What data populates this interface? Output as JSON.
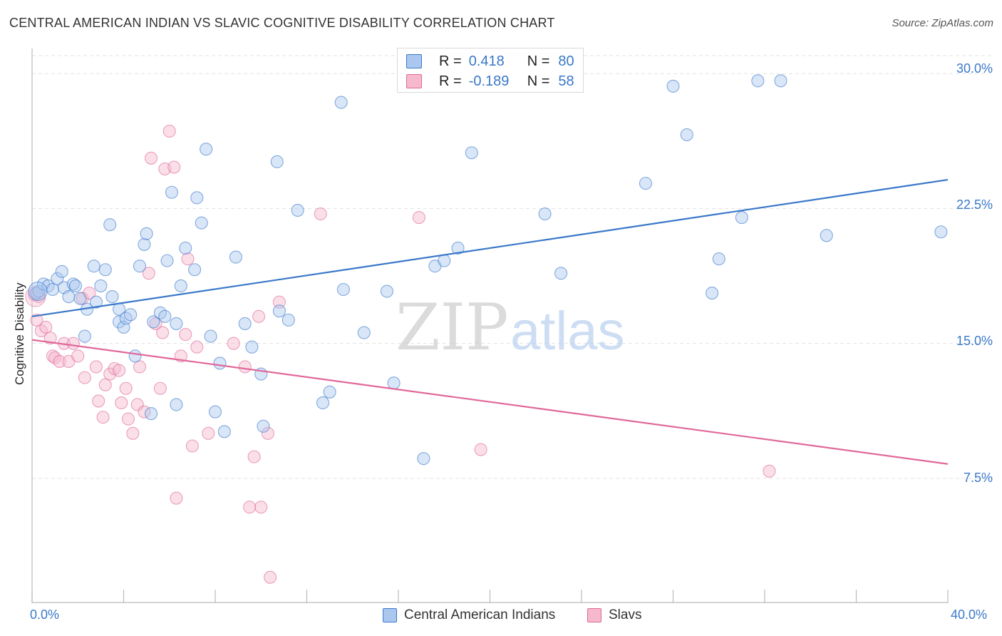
{
  "title": "CENTRAL AMERICAN INDIAN VS SLAVIC COGNITIVE DISABILITY CORRELATION CHART",
  "source": "Source: ZipAtlas.com",
  "watermark": "ZIPatlas",
  "legend": {
    "r_label": "R =",
    "n_label": "N =",
    "series1": {
      "r": "0.418",
      "n": "80"
    },
    "series2": {
      "r": "-0.189",
      "n": "58"
    }
  },
  "colors": {
    "blue": "#3a78c9",
    "blue_fill": "#aac8ef",
    "pink": "#e0689a",
    "pink_fill": "#f5b8cc",
    "grid": "#e3e3e3"
  },
  "chart_data": {
    "type": "scatter",
    "title": "CENTRAL AMERICAN INDIAN VS SLAVIC COGNITIVE DISABILITY CORRELATION CHART",
    "xlabel": "",
    "ylabel": "Cognitive Disability",
    "xlim": [
      0,
      40
    ],
    "ylim": [
      0.6,
      31.0
    ],
    "x_tick_labels": [
      "0.0%",
      "40.0%"
    ],
    "y_ticks": [
      7.5,
      15.0,
      22.5,
      30.0
    ],
    "y_tick_labels": [
      "7.5%",
      "15.0%",
      "22.5%",
      "30.0%"
    ],
    "grid": true,
    "legend_position": "top-center",
    "series": [
      {
        "name": "Central American Indians",
        "r": 0.418,
        "n": 80,
        "trend": [
          [
            0,
            16.5
          ],
          [
            40,
            24.1
          ]
        ],
        "points": [
          [
            0.2,
            17.8
          ],
          [
            0.3,
            17.9
          ],
          [
            0.5,
            18.3
          ],
          [
            0.7,
            18.2
          ],
          [
            0.9,
            18.0
          ],
          [
            1.1,
            18.6
          ],
          [
            1.3,
            19.0
          ],
          [
            1.4,
            18.1
          ],
          [
            1.6,
            17.6
          ],
          [
            1.8,
            18.3
          ],
          [
            1.9,
            18.2
          ],
          [
            2.1,
            17.5
          ],
          [
            2.3,
            15.4
          ],
          [
            2.4,
            16.9
          ],
          [
            2.7,
            19.3
          ],
          [
            2.8,
            17.3
          ],
          [
            3.0,
            18.2
          ],
          [
            3.2,
            19.1
          ],
          [
            3.4,
            21.6
          ],
          [
            3.5,
            17.6
          ],
          [
            3.8,
            16.9
          ],
          [
            3.8,
            16.2
          ],
          [
            4.0,
            15.9
          ],
          [
            4.1,
            16.4
          ],
          [
            4.3,
            16.6
          ],
          [
            4.5,
            14.3
          ],
          [
            4.7,
            19.3
          ],
          [
            4.9,
            20.5
          ],
          [
            5.0,
            21.1
          ],
          [
            5.2,
            11.1
          ],
          [
            5.3,
            16.2
          ],
          [
            5.6,
            16.7
          ],
          [
            5.8,
            16.5
          ],
          [
            5.9,
            19.6
          ],
          [
            6.1,
            23.4
          ],
          [
            6.3,
            11.6
          ],
          [
            6.3,
            16.1
          ],
          [
            6.5,
            18.2
          ],
          [
            6.7,
            20.3
          ],
          [
            7.1,
            19.1
          ],
          [
            7.2,
            23.1
          ],
          [
            7.4,
            21.7
          ],
          [
            7.6,
            25.8
          ],
          [
            7.8,
            15.4
          ],
          [
            8.0,
            11.2
          ],
          [
            8.2,
            13.9
          ],
          [
            8.4,
            10.1
          ],
          [
            8.9,
            19.8
          ],
          [
            9.3,
            16.1
          ],
          [
            9.6,
            14.8
          ],
          [
            10.0,
            13.3
          ],
          [
            10.1,
            10.4
          ],
          [
            10.7,
            25.1
          ],
          [
            10.8,
            16.8
          ],
          [
            11.2,
            16.3
          ],
          [
            11.6,
            22.4
          ],
          [
            12.7,
            11.7
          ],
          [
            13.0,
            12.3
          ],
          [
            13.5,
            28.4
          ],
          [
            13.6,
            18.0
          ],
          [
            14.5,
            15.6
          ],
          [
            15.5,
            17.9
          ],
          [
            15.8,
            12.8
          ],
          [
            17.1,
            8.6
          ],
          [
            17.6,
            19.3
          ],
          [
            18.0,
            19.6
          ],
          [
            18.6,
            20.3
          ],
          [
            19.2,
            25.6
          ],
          [
            22.4,
            22.2
          ],
          [
            23.1,
            18.9
          ],
          [
            26.8,
            23.9
          ],
          [
            28.0,
            29.3
          ],
          [
            28.6,
            26.6
          ],
          [
            29.7,
            17.8
          ],
          [
            30.0,
            19.7
          ],
          [
            31.0,
            22.0
          ],
          [
            31.7,
            29.6
          ],
          [
            32.7,
            29.6
          ],
          [
            34.7,
            21.0
          ],
          [
            39.7,
            21.2
          ]
        ]
      },
      {
        "name": "Slavs",
        "r": -0.189,
        "n": 58,
        "trend": [
          [
            0,
            15.2
          ],
          [
            40,
            8.3
          ]
        ],
        "points": [
          [
            0.1,
            17.7
          ],
          [
            0.2,
            16.3
          ],
          [
            0.4,
            15.7
          ],
          [
            0.6,
            15.9
          ],
          [
            0.8,
            15.3
          ],
          [
            0.9,
            14.3
          ],
          [
            1.0,
            14.2
          ],
          [
            1.2,
            14.0
          ],
          [
            1.4,
            15.0
          ],
          [
            1.6,
            14.0
          ],
          [
            1.8,
            15.0
          ],
          [
            2.0,
            14.3
          ],
          [
            2.2,
            17.5
          ],
          [
            2.3,
            13.1
          ],
          [
            2.5,
            17.8
          ],
          [
            2.8,
            13.7
          ],
          [
            2.9,
            11.8
          ],
          [
            3.1,
            10.9
          ],
          [
            3.2,
            12.7
          ],
          [
            3.4,
            13.3
          ],
          [
            3.6,
            13.6
          ],
          [
            3.8,
            13.5
          ],
          [
            3.9,
            11.7
          ],
          [
            4.1,
            12.5
          ],
          [
            4.2,
            10.8
          ],
          [
            4.4,
            10.0
          ],
          [
            4.6,
            11.6
          ],
          [
            4.7,
            13.7
          ],
          [
            4.9,
            11.2
          ],
          [
            5.1,
            18.9
          ],
          [
            5.2,
            25.3
          ],
          [
            5.4,
            16.1
          ],
          [
            5.6,
            12.5
          ],
          [
            5.7,
            15.6
          ],
          [
            5.8,
            24.7
          ],
          [
            6.0,
            26.8
          ],
          [
            6.2,
            24.8
          ],
          [
            6.3,
            6.4
          ],
          [
            6.5,
            14.3
          ],
          [
            6.7,
            15.5
          ],
          [
            6.8,
            19.7
          ],
          [
            7.0,
            9.3
          ],
          [
            7.2,
            14.8
          ],
          [
            7.7,
            10.0
          ],
          [
            8.8,
            15.0
          ],
          [
            9.3,
            13.7
          ],
          [
            9.5,
            5.9
          ],
          [
            9.7,
            8.7
          ],
          [
            9.9,
            16.5
          ],
          [
            10.0,
            5.9
          ],
          [
            10.3,
            10.0
          ],
          [
            10.4,
            2.0
          ],
          [
            10.8,
            17.3
          ],
          [
            12.6,
            22.2
          ],
          [
            16.9,
            22.0
          ],
          [
            19.6,
            9.1
          ],
          [
            32.2,
            7.9
          ],
          [
            0.3,
            17.6
          ]
        ]
      }
    ]
  },
  "bottom_legend": {
    "series1": "Central American Indians",
    "series2": "Slavs"
  }
}
